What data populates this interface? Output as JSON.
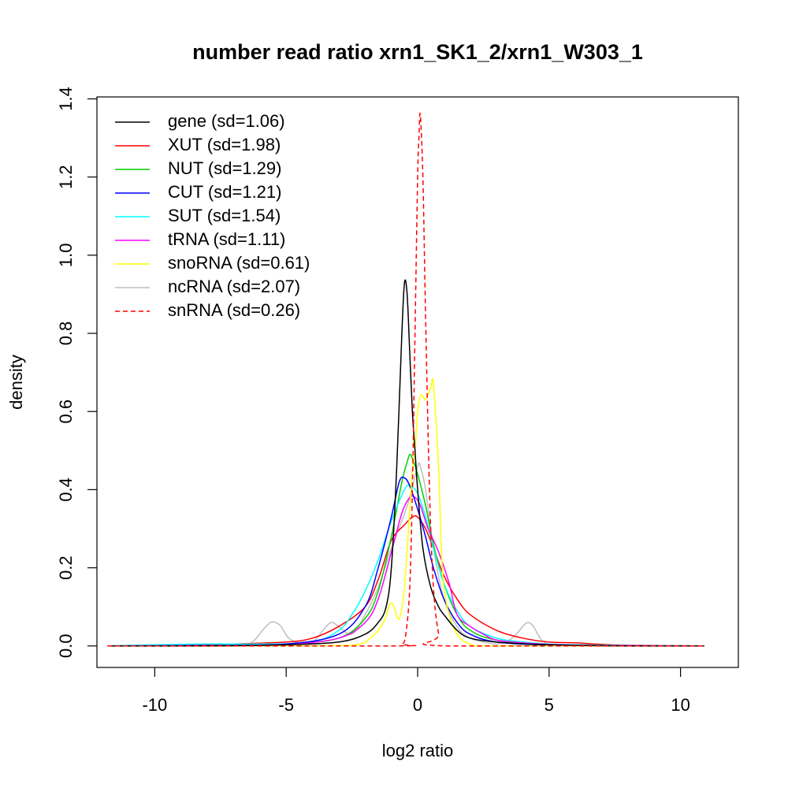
{
  "chart_data": {
    "type": "line",
    "title": "number read ratio xrn1_SK1_2/xrn1_W303_1",
    "xlabel": "log2 ratio",
    "ylabel": "density",
    "xlim": [
      -12.2,
      12.2
    ],
    "ylim": [
      -0.055,
      1.405
    ],
    "xticks": [
      -10,
      -5,
      0,
      5,
      10
    ],
    "xtick_labels": [
      "-10",
      "-5",
      "0",
      "5",
      "10"
    ],
    "yticks": [
      0.0,
      0.2,
      0.4,
      0.6,
      0.8,
      1.0,
      1.2,
      1.4
    ],
    "ytick_labels": [
      "0.0",
      "0.2",
      "0.4",
      "0.6",
      "0.8",
      "1.0",
      "1.2",
      "1.4"
    ],
    "grid": false,
    "legend_position": "top-left",
    "series": [
      {
        "name": "gene (sd=1.06)",
        "color": "#000000",
        "dash": false,
        "x": [
          -11.8,
          -8,
          -5,
          -3,
          -2,
          -1.5,
          -1.2,
          -1.0,
          -0.8,
          -0.6,
          -0.5,
          -0.4,
          -0.3,
          -0.2,
          -0.1,
          0.0,
          0.2,
          0.5,
          0.8,
          1.0,
          1.5,
          2.0,
          3.0,
          5.0,
          8.0,
          10.9
        ],
        "y": [
          0,
          0,
          0.003,
          0.01,
          0.03,
          0.06,
          0.1,
          0.2,
          0.45,
          0.8,
          0.93,
          0.9,
          0.75,
          0.6,
          0.5,
          0.4,
          0.25,
          0.15,
          0.1,
          0.08,
          0.04,
          0.02,
          0.01,
          0.003,
          0,
          0
        ]
      },
      {
        "name": "XUT (sd=1.98)",
        "color": "#ff0000",
        "dash": false,
        "x": [
          -11.8,
          -9,
          -7,
          -5,
          -4,
          -3,
          -2,
          -1.5,
          -1.0,
          -0.5,
          -0.2,
          0.0,
          0.3,
          0.6,
          1.0,
          1.5,
          2.0,
          3.0,
          4.0,
          5.0,
          6.0,
          7.0,
          8.0,
          10.9
        ],
        "y": [
          0,
          0.002,
          0.005,
          0.01,
          0.02,
          0.05,
          0.1,
          0.17,
          0.27,
          0.31,
          0.33,
          0.33,
          0.3,
          0.25,
          0.18,
          0.12,
          0.08,
          0.04,
          0.02,
          0.01,
          0.008,
          0.004,
          0.002,
          0
        ]
      },
      {
        "name": "NUT (sd=1.29)",
        "color": "#00cd00",
        "dash": false,
        "x": [
          -11.8,
          -8,
          -5,
          -3,
          -2,
          -1.5,
          -1.0,
          -0.6,
          -0.4,
          -0.3,
          -0.2,
          0.0,
          0.3,
          0.6,
          1.0,
          1.5,
          2.0,
          3.0,
          5.0,
          8.0,
          10.9
        ],
        "y": [
          0,
          0.001,
          0.005,
          0.02,
          0.07,
          0.14,
          0.28,
          0.42,
          0.47,
          0.49,
          0.48,
          0.44,
          0.36,
          0.26,
          0.16,
          0.08,
          0.04,
          0.015,
          0.003,
          0,
          0
        ]
      },
      {
        "name": "CUT (sd=1.21)",
        "color": "#0000ff",
        "dash": false,
        "x": [
          -11.8,
          -8,
          -5,
          -3,
          -2,
          -1.5,
          -1.0,
          -0.7,
          -0.5,
          -0.3,
          0.0,
          0.3,
          0.6,
          1.0,
          1.5,
          2.0,
          3.0,
          5.0,
          8.0,
          10.9
        ],
        "y": [
          0,
          0.001,
          0.005,
          0.03,
          0.1,
          0.2,
          0.33,
          0.42,
          0.43,
          0.41,
          0.35,
          0.28,
          0.2,
          0.12,
          0.06,
          0.03,
          0.01,
          0.002,
          0,
          0
        ]
      },
      {
        "name": "SUT (sd=1.54)",
        "color": "#00ffff",
        "dash": false,
        "x": [
          -11.8,
          -10,
          -8,
          -6,
          -4,
          -3,
          -2.5,
          -2,
          -1.5,
          -1.0,
          -0.5,
          -0.3,
          0.0,
          0.3,
          0.6,
          1.0,
          1.5,
          2.0,
          3.0,
          4.0,
          5.0,
          7.0,
          10.9
        ],
        "y": [
          0,
          0.003,
          0.005,
          0.005,
          0.01,
          0.04,
          0.08,
          0.14,
          0.22,
          0.32,
          0.4,
          0.41,
          0.39,
          0.33,
          0.25,
          0.16,
          0.09,
          0.05,
          0.02,
          0.01,
          0.005,
          0.002,
          0
        ]
      },
      {
        "name": "tRNA (sd=1.11)",
        "color": "#ff00ff",
        "dash": false,
        "x": [
          -11.8,
          -8,
          -5,
          -3,
          -2,
          -1.5,
          -1.0,
          -0.6,
          -0.3,
          -0.1,
          0.1,
          0.4,
          0.8,
          1.2,
          1.5,
          2.0,
          2.5,
          3.0,
          4.0,
          5.0,
          7.0,
          10.9
        ],
        "y": [
          0,
          0.001,
          0.004,
          0.02,
          0.06,
          0.12,
          0.24,
          0.34,
          0.38,
          0.38,
          0.36,
          0.3,
          0.24,
          0.16,
          0.08,
          0.05,
          0.03,
          0.015,
          0.008,
          0.004,
          0.001,
          0
        ]
      },
      {
        "name": "snoRNA (sd=0.61)",
        "color": "#ffff00",
        "dash": false,
        "x": [
          -11.8,
          -5,
          -2.5,
          -1.8,
          -1.3,
          -1.1,
          -1.0,
          -0.9,
          -0.7,
          -0.5,
          -0.3,
          -0.2,
          -0.1,
          0.0,
          0.1,
          0.2,
          0.3,
          0.5,
          0.6,
          0.8,
          0.9,
          1.0,
          1.2,
          1.5,
          2.0,
          3.0,
          10.9
        ],
        "y": [
          0,
          0,
          0.002,
          0.02,
          0.06,
          0.1,
          0.11,
          0.1,
          0.07,
          0.15,
          0.35,
          0.45,
          0.5,
          0.6,
          0.64,
          0.64,
          0.63,
          0.66,
          0.67,
          0.45,
          0.25,
          0.15,
          0.08,
          0.03,
          0.005,
          0,
          0
        ]
      },
      {
        "name": "ncRNA (sd=2.07)",
        "color": "#bebebe",
        "dash": false,
        "x": [
          -11.8,
          -7,
          -6.3,
          -5.9,
          -5.6,
          -5.4,
          -5.2,
          -4.9,
          -4.5,
          -4.0,
          -3.6,
          -3.3,
          -3.0,
          -2.5,
          -2.0,
          -1.5,
          -1.0,
          -0.6,
          -0.3,
          0.0,
          0.1,
          0.3,
          0.6,
          1.0,
          1.5,
          2.0,
          3.0,
          3.6,
          4.0,
          4.2,
          4.4,
          4.8,
          5.5,
          7.0,
          10.9
        ],
        "y": [
          0,
          0,
          0.01,
          0.04,
          0.06,
          0.06,
          0.05,
          0.02,
          0.008,
          0.01,
          0.04,
          0.06,
          0.05,
          0.03,
          0.08,
          0.15,
          0.25,
          0.32,
          0.38,
          0.46,
          0.46,
          0.4,
          0.25,
          0.12,
          0.05,
          0.02,
          0.005,
          0.02,
          0.05,
          0.06,
          0.05,
          0.01,
          0.002,
          0,
          0
        ]
      },
      {
        "name": "snRNA (sd=0.26)",
        "color": "#ff0000",
        "dash": true,
        "x": [
          -11.8,
          -1.0,
          -0.6,
          -0.45,
          -0.3,
          -0.2,
          -0.1,
          0.0,
          0.05,
          0.1,
          0.2,
          0.3,
          0.45,
          0.6,
          0.8,
          1.0,
          10.9
        ],
        "y": [
          0,
          0,
          0.005,
          0.03,
          0.15,
          0.4,
          0.8,
          1.2,
          1.3,
          1.36,
          1.2,
          0.85,
          0.4,
          0.15,
          0.03,
          0,
          0
        ]
      }
    ]
  }
}
